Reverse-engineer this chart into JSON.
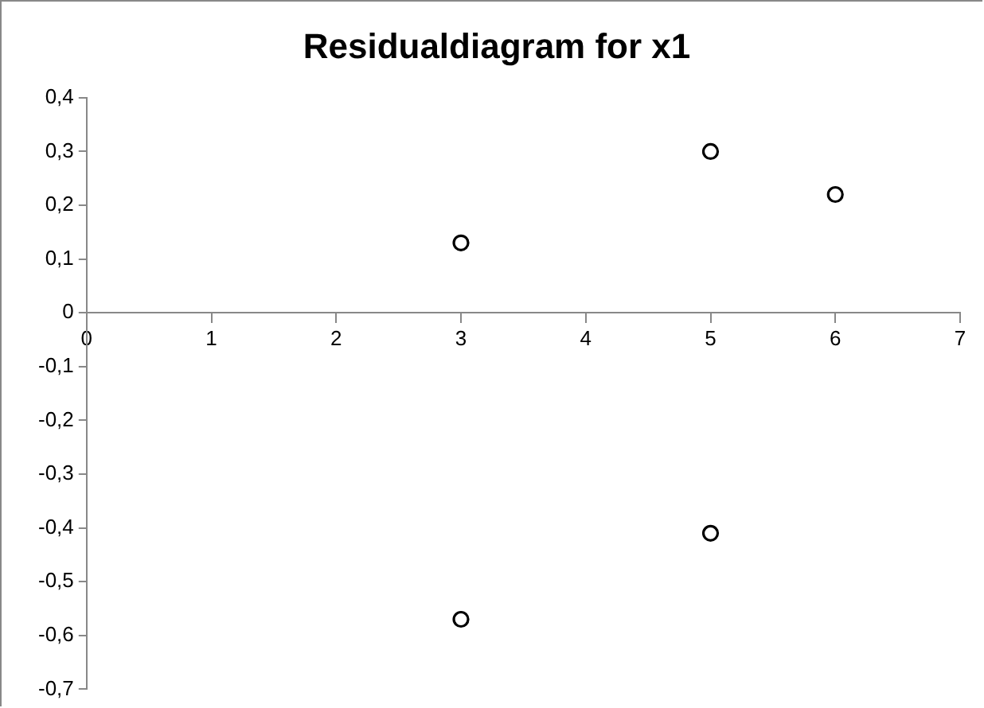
{
  "chart_data": {
    "type": "scatter",
    "title": "Residualdiagram for x1",
    "x": [
      3,
      3,
      5,
      5,
      6
    ],
    "values": [
      0.13,
      -0.57,
      0.3,
      -0.41,
      0.22
    ],
    "color": "#000000",
    "marker": "circle",
    "grid": false,
    "legend": false,
    "xlim": [
      0,
      7
    ],
    "xticks": [
      0,
      1,
      2,
      3,
      4,
      5,
      6,
      7
    ],
    "ylim": [
      -0.7,
      0.4
    ],
    "yticks": [
      {
        "value": 0.4,
        "label": "0,4"
      },
      {
        "value": 0.3,
        "label": "0,3"
      },
      {
        "value": 0.2,
        "label": "0,2"
      },
      {
        "value": 0.1,
        "label": "0,1"
      },
      {
        "value": 0,
        "label": "0"
      },
      {
        "value": -0.1,
        "label": "-0,1"
      },
      {
        "value": -0.2,
        "label": "-0,2"
      },
      {
        "value": -0.3,
        "label": "-0,3"
      },
      {
        "value": -0.4,
        "label": "-0,4"
      },
      {
        "value": -0.5,
        "label": "-0,5"
      },
      {
        "value": -0.6,
        "label": "-0,6"
      },
      {
        "value": -0.7,
        "label": "-0,7"
      }
    ]
  }
}
